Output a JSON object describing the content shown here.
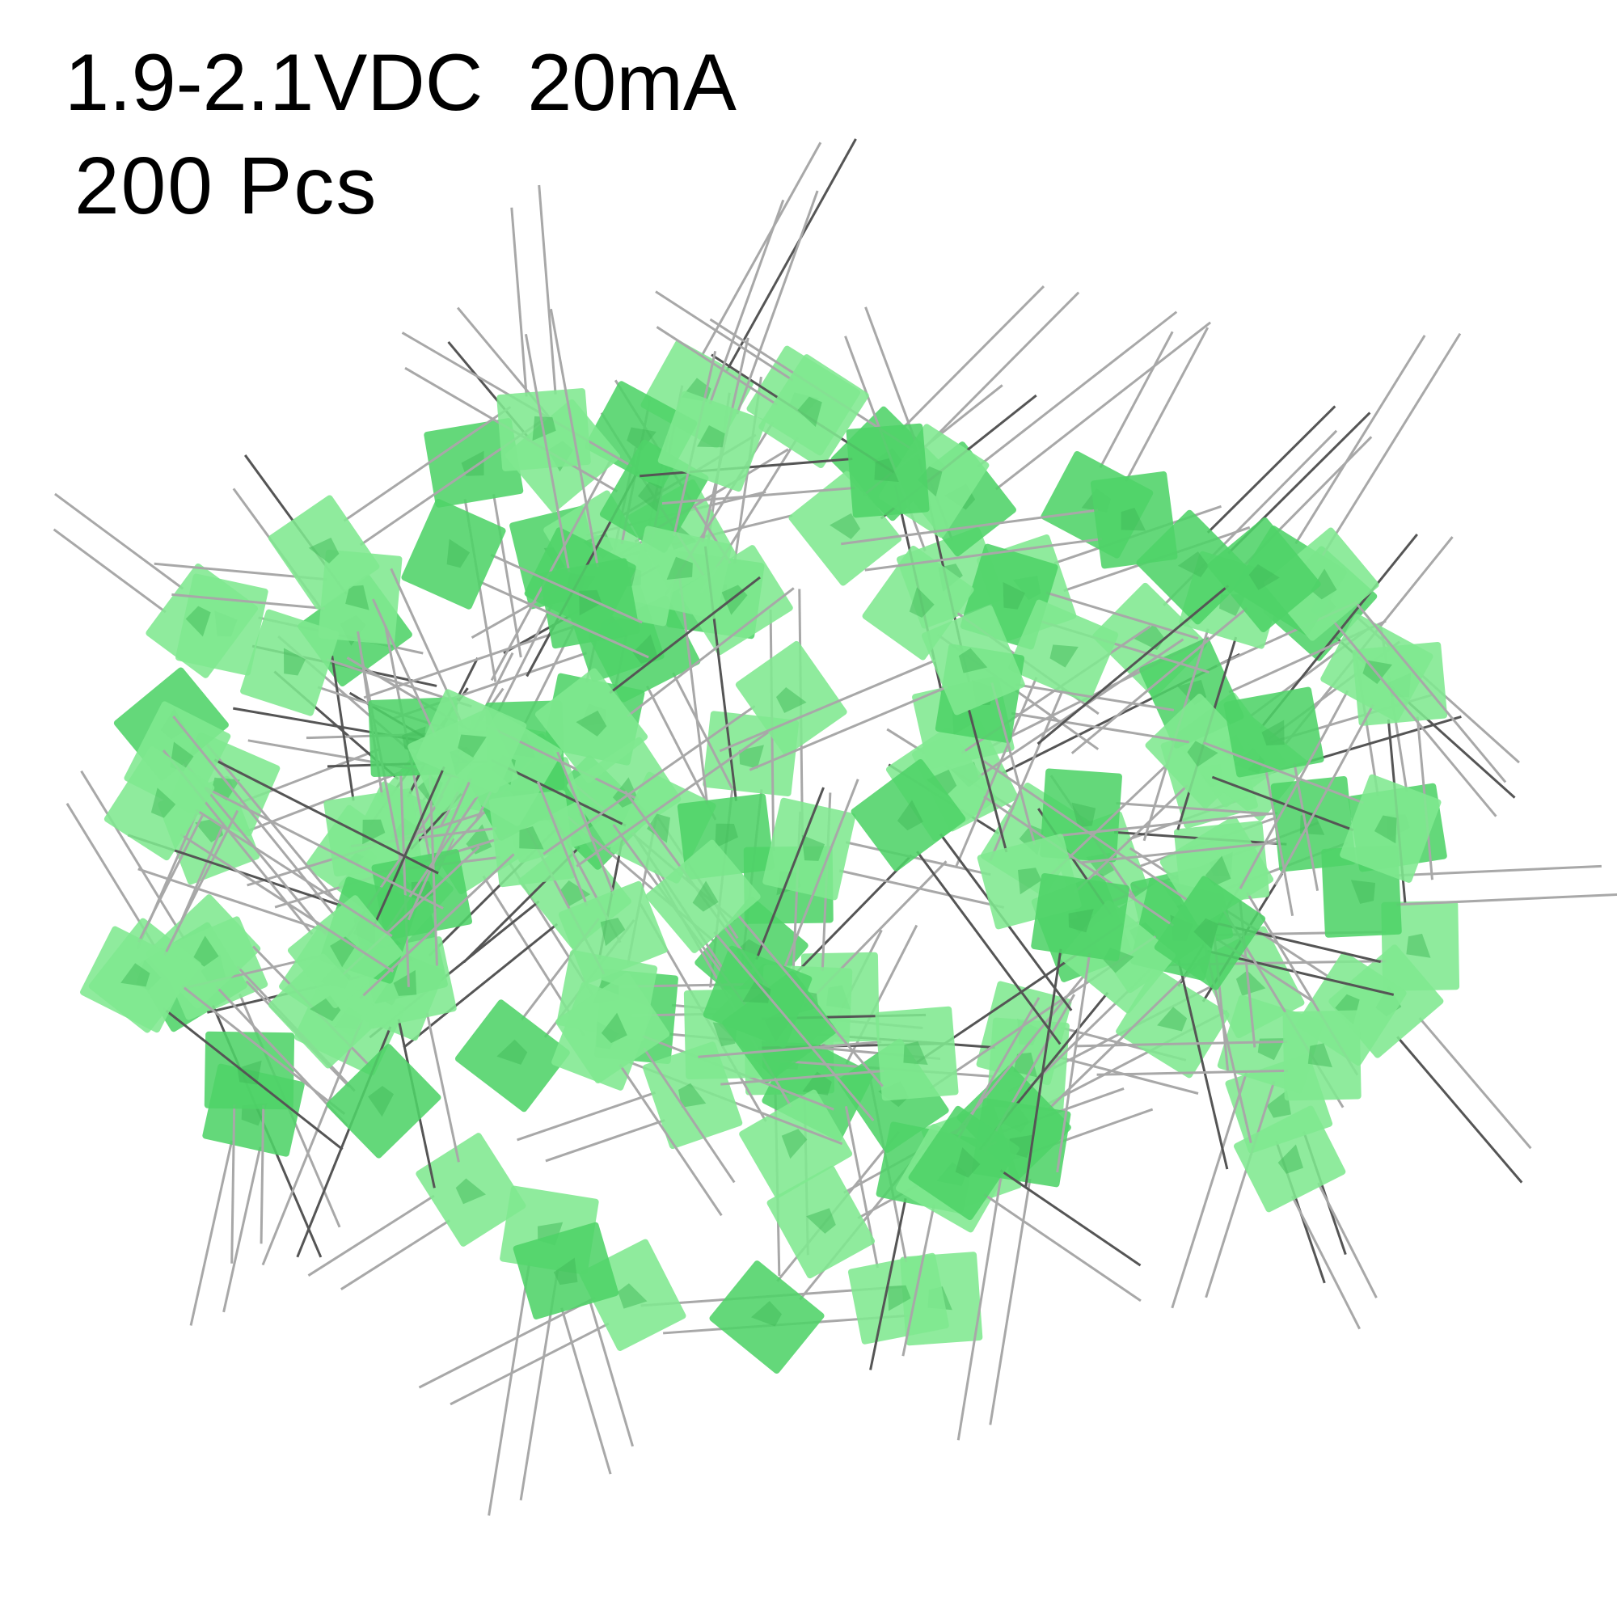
{
  "caption": {
    "spec_line": "1.9-2.1VDC  20mA",
    "quantity_line": "200 Pcs"
  },
  "photo": {
    "subject": "rectangular-green-led-pile",
    "colors": {
      "led_body": "#7fe88f",
      "led_body_dark": "#4fd368",
      "lead": "#a8a8a8",
      "background": "#ffffff"
    }
  }
}
